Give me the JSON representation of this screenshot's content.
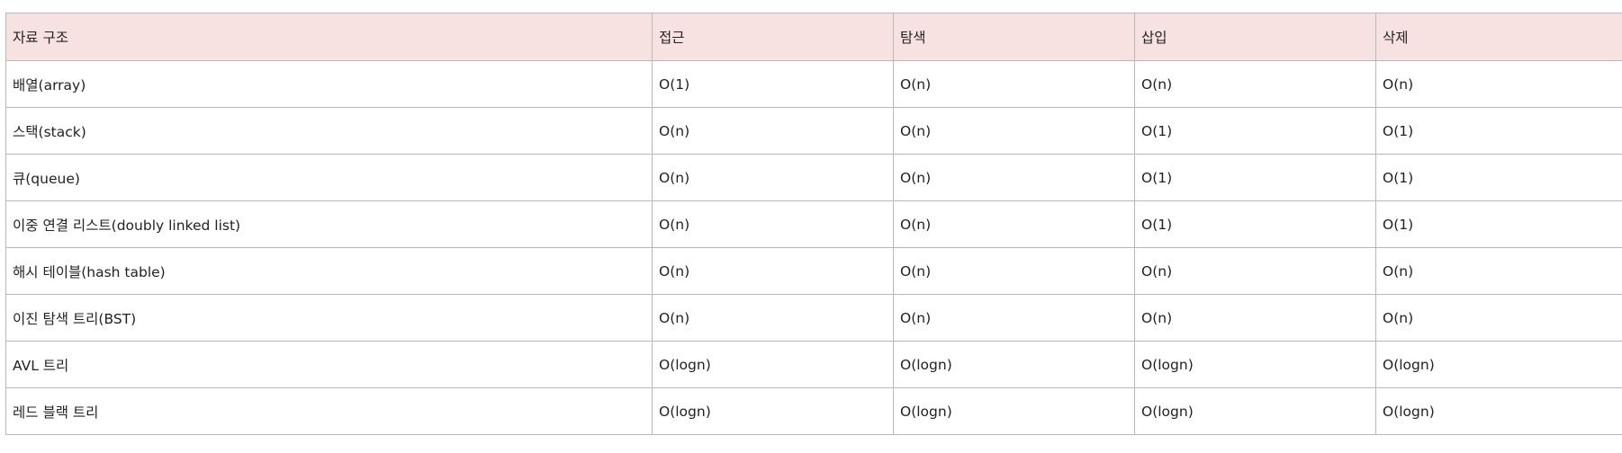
{
  "table": {
    "headers": [
      "자료 구조",
      "접근",
      "탐색",
      "삽입",
      "삭제"
    ],
    "rows": [
      [
        "배열(array)",
        "O(1)",
        "O(n)",
        "O(n)",
        "O(n)"
      ],
      [
        "스택(stack)",
        "O(n)",
        "O(n)",
        "O(1)",
        "O(1)"
      ],
      [
        "큐(queue)",
        "O(n)",
        "O(n)",
        "O(1)",
        "O(1)"
      ],
      [
        "이중 연결 리스트(doubly linked list)",
        "O(n)",
        "O(n)",
        "O(1)",
        "O(1)"
      ],
      [
        "해시 테이블(hash table)",
        "O(n)",
        "O(n)",
        "O(n)",
        "O(n)"
      ],
      [
        "이진 탐색 트리(BST)",
        "O(n)",
        "O(n)",
        "O(n)",
        "O(n)"
      ],
      [
        "AVL 트리",
        "O(logn)",
        "O(logn)",
        "O(logn)",
        "O(logn)"
      ],
      [
        "레드 블랙 트리",
        "O(logn)",
        "O(logn)",
        "O(logn)",
        "O(logn)"
      ]
    ]
  },
  "colors": {
    "header_background": "#f8e1e1",
    "border": "#b8b8b8",
    "text": "#222222"
  }
}
